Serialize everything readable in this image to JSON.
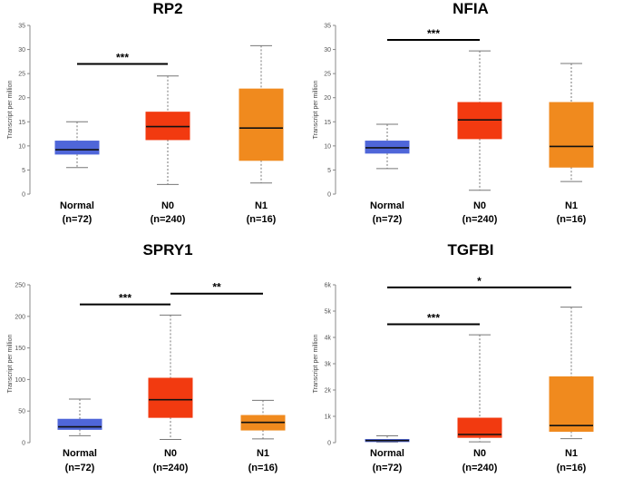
{
  "chart_data": [
    {
      "type": "box",
      "title": "RP2",
      "ylabel": "Transcript per million",
      "ylim": [
        0,
        35
      ],
      "yticks": [
        0,
        5,
        10,
        15,
        20,
        25,
        30,
        35
      ],
      "yticklabels": [
        "0",
        "5",
        "10",
        "15",
        "20",
        "25",
        "30",
        "35"
      ],
      "categories": [
        {
          "name": "Normal",
          "n": "(n=72)"
        },
        {
          "name": "N0",
          "n": "(n=240)"
        },
        {
          "name": "N1",
          "n": "(n=16)"
        }
      ],
      "boxes": [
        {
          "min": 5.5,
          "q1": 8.3,
          "median": 9.2,
          "q3": 11.0,
          "max": 15.0
        },
        {
          "min": 2.0,
          "q1": 11.3,
          "median": 14.0,
          "q3": 17.0,
          "max": 24.5
        },
        {
          "min": 2.3,
          "q1": 7.0,
          "median": 13.7,
          "q3": 21.8,
          "max": 30.8
        }
      ],
      "significance": [
        {
          "from": 0,
          "to": 1,
          "label": "***",
          "y": 27.0
        }
      ]
    },
    {
      "type": "box",
      "title": "NFIA",
      "ylabel": "Transcript per million",
      "ylim": [
        0,
        35
      ],
      "yticks": [
        0,
        5,
        10,
        15,
        20,
        25,
        30,
        35
      ],
      "yticklabels": [
        "0",
        "5",
        "10",
        "15",
        "20",
        "25",
        "30",
        "35"
      ],
      "categories": [
        {
          "name": "Normal",
          "n": "(n=72)"
        },
        {
          "name": "N0",
          "n": "(n=240)"
        },
        {
          "name": "N1",
          "n": "(n=16)"
        }
      ],
      "boxes": [
        {
          "min": 5.3,
          "q1": 8.5,
          "median": 9.6,
          "q3": 11.0,
          "max": 14.5
        },
        {
          "min": 0.8,
          "q1": 11.5,
          "median": 15.4,
          "q3": 19.0,
          "max": 29.7
        },
        {
          "min": 2.6,
          "q1": 5.6,
          "median": 9.9,
          "q3": 19.0,
          "max": 27.1
        }
      ],
      "significance": [
        {
          "from": 0,
          "to": 1,
          "label": "***",
          "y": 32.0
        }
      ]
    },
    {
      "type": "box",
      "title": "SPRY1",
      "ylabel": "Transcript per million",
      "ylim": [
        0,
        250
      ],
      "yticks": [
        0,
        50,
        100,
        150,
        200,
        250
      ],
      "yticklabels": [
        "0",
        "50",
        "100",
        "150",
        "200",
        "250"
      ],
      "categories": [
        {
          "name": "Normal",
          "n": "(n=72)"
        },
        {
          "name": "N0",
          "n": "(n=240)"
        },
        {
          "name": "N1",
          "n": "(n=16)"
        }
      ],
      "boxes": [
        {
          "min": 11,
          "q1": 21,
          "median": 25,
          "q3": 37,
          "max": 69
        },
        {
          "min": 5,
          "q1": 40,
          "median": 68,
          "q3": 102,
          "max": 202
        },
        {
          "min": 6,
          "q1": 20,
          "median": 32,
          "q3": 43,
          "max": 67
        }
      ],
      "significance": [
        {
          "from": 0,
          "to": 1,
          "label": "***",
          "y": 219
        },
        {
          "from": 1,
          "to": 2,
          "label": "**",
          "y": 236
        }
      ]
    },
    {
      "type": "box",
      "title": "TGFBI",
      "ylabel": "Transcript per million",
      "ylim": [
        0,
        6000
      ],
      "yticks": [
        0,
        1000,
        2000,
        3000,
        4000,
        5000,
        6000
      ],
      "yticklabels": [
        "0",
        "1k",
        "2k",
        "3k",
        "4k",
        "5k",
        "6k"
      ],
      "categories": [
        {
          "name": "Normal",
          "n": "(n=72)"
        },
        {
          "name": "N0",
          "n": "(n=240)"
        },
        {
          "name": "N1",
          "n": "(n=16)"
        }
      ],
      "boxes": [
        {
          "min": 20,
          "q1": 40,
          "median": 80,
          "q3": 120,
          "max": 260
        },
        {
          "min": 30,
          "q1": 200,
          "median": 310,
          "q3": 930,
          "max": 4100
        },
        {
          "min": 150,
          "q1": 430,
          "median": 650,
          "q3": 2500,
          "max": 5150
        }
      ],
      "significance": [
        {
          "from": 0,
          "to": 1,
          "label": "***",
          "y": 4500
        },
        {
          "from": 0,
          "to": 2,
          "label": "*",
          "y": 5900
        }
      ]
    }
  ],
  "colors": {
    "normal": "#4f66d9",
    "n0": "#f23a10",
    "n1": "#f08a1e",
    "axis": "#888888",
    "whisker": "#777777"
  }
}
